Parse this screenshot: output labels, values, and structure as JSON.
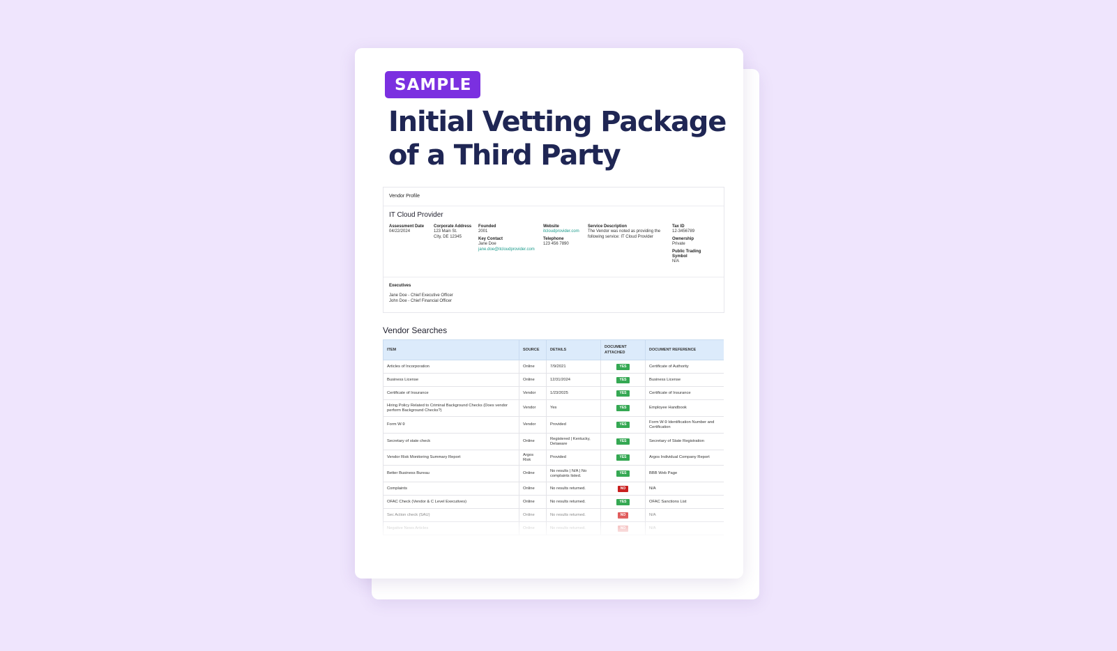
{
  "badge": "SAMPLE",
  "title_line1": "Initial Vetting Package",
  "title_line2": "of a Third Party",
  "profile": {
    "header": "Vendor Profile",
    "vendor_name": "IT Cloud Provider",
    "assessment_date_label": "Assessment Date",
    "assessment_date": "04/22/2024",
    "corporate_address_label": "Corporate Address",
    "address_line1": "123 Main St.",
    "address_line2": "City, DE 12345",
    "founded_label": "Founded",
    "founded": "2001",
    "key_contact_label": "Key Contact",
    "key_contact_name": "Jane Doe",
    "key_contact_email": "jane.doe@itcloudprovider.com",
    "website_label": "Website",
    "website": "itcloudprovider.com",
    "telephone_label": "Telephone",
    "telephone": "123 456 7890",
    "service_description_label": "Service Description",
    "service_description": "The Vendor was noted as providing the following service: IT Cloud Provider",
    "tax_id_label": "Tax ID",
    "tax_id": "12-3456789",
    "ownership_label": "Ownership",
    "ownership": "Private",
    "public_trading_symbol_label_1": "Public Trading",
    "public_trading_symbol_label_2": "Symbol",
    "public_trading_symbol": "N/A",
    "executives_label": "Executives",
    "executive_1": "Jane Doe - Chief Executive Officer",
    "executive_2": "John Doe - Chief Financial Officer"
  },
  "searches": {
    "title": "Vendor Searches",
    "headers": {
      "item": "Item",
      "source": "Source",
      "details": "Details",
      "doc_attached_1": "Document",
      "doc_attached_2": "Attached",
      "doc_reference": "Document Reference"
    },
    "rows": [
      {
        "item": "Articles of Incorporation",
        "source": "Online",
        "details": "7/9/2021",
        "attached": "YES",
        "reference": "Certificate of Authority"
      },
      {
        "item": "Business License",
        "source": "Online",
        "details": "12/31/2024",
        "attached": "YES",
        "reference": "Business License"
      },
      {
        "item": "Certificate of Insurance",
        "source": "Vendor",
        "details": "1/23/2025",
        "attached": "YES",
        "reference": "Certificate of Insurance"
      },
      {
        "item": "Hiring Policy Related to Criminal Background Checks (Does vendor perform Background Checks?)",
        "source": "Vendor",
        "details": "Yes",
        "attached": "YES",
        "reference": "Employee Handbook"
      },
      {
        "item": "Form W-9",
        "source": "Vendor",
        "details": "Provided",
        "attached": "YES",
        "reference": "Form W-9 Identification Number and Certification"
      },
      {
        "item": "Secretary of state check",
        "source": "Online",
        "details": "Registered | Kentucky, Delaware",
        "attached": "YES",
        "reference": "Secretary of State Registration"
      },
      {
        "item": "Vendor Risk Monitoring Summary Report",
        "source": "Argos Risk",
        "details": "Provided",
        "attached": "YES",
        "reference": "Argos Individual Company Report"
      },
      {
        "item": "Better Business Bureau",
        "source": "Online",
        "details": "No results | N/A | No complaints listed.",
        "attached": "YES",
        "reference": "BBB Web Page"
      },
      {
        "item": "Complaints",
        "source": "Online",
        "details": "No results returned.",
        "attached": "NO",
        "reference": "N/A"
      },
      {
        "item": "OFAC Check (Vendor & C Level Executives)",
        "source": "Online",
        "details": "No results returned.",
        "attached": "YES",
        "reference": "OFAC Sanctions List"
      },
      {
        "item": "Sec Action check (SAU)",
        "source": "Online",
        "details": "No results returned.",
        "attached": "NO",
        "reference": "N/A"
      },
      {
        "item": "Negative News Articles",
        "source": "Online",
        "details": "No results returned.",
        "attached": "NO",
        "reference": "N/A"
      }
    ]
  },
  "colors": {
    "background": "#efe5fd",
    "badge": "#7b30e0",
    "title": "#1f2654",
    "header_fill": "#dcebfb",
    "yes": "#35a853",
    "no": "#c9201f",
    "link": "#1a9a8a"
  }
}
